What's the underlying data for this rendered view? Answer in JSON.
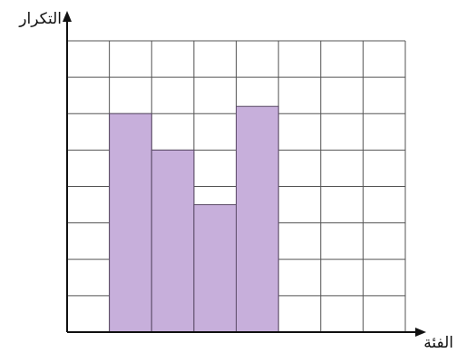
{
  "chart_data": {
    "type": "bar",
    "title": "",
    "ylabel": "التكرار",
    "xlabel": "الفئة",
    "grid": true,
    "grid_columns": 8,
    "grid_rows": 8,
    "bar_start_column": 1,
    "values": [
      6,
      5,
      3.5,
      6.2
    ],
    "ylim": [
      0,
      8
    ],
    "colors": {
      "bar_fill": "#c7afdb",
      "bar_stroke": "#5a4a66",
      "grid": "#555555",
      "axis": "#111111"
    }
  }
}
